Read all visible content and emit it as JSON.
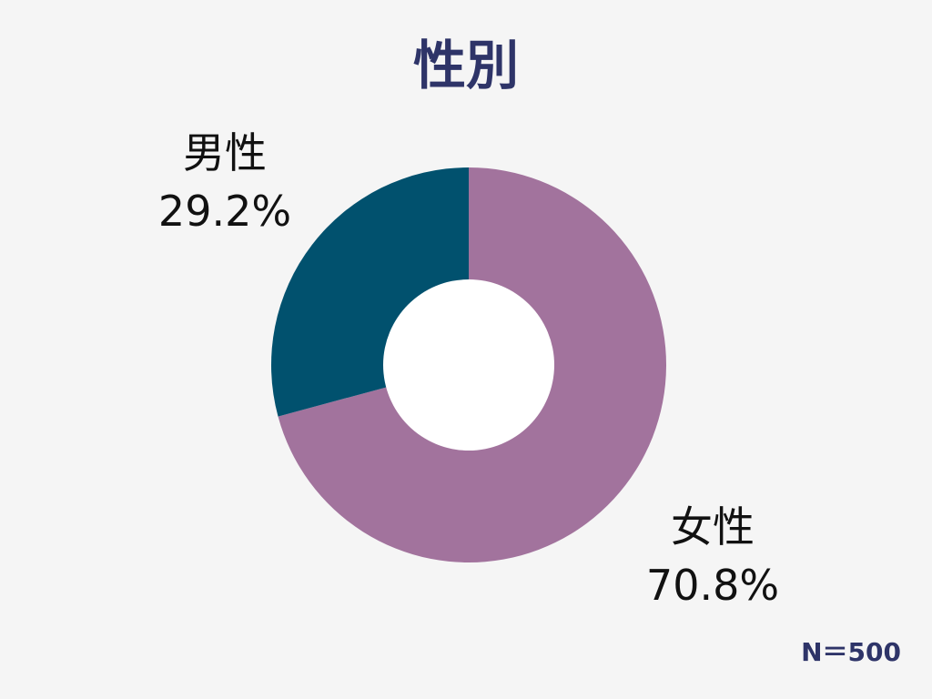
{
  "chart_data": {
    "type": "pie",
    "title": "性別",
    "categories": [
      "女性",
      "男性"
    ],
    "values": [
      70.8,
      29.2
    ],
    "value_labels": [
      "70.8%",
      "29.2%"
    ],
    "colors": [
      "#a2739d",
      "#01516e"
    ],
    "donut": true,
    "start": "12 o'clock, clockwise",
    "note": "N＝500"
  },
  "colors": {
    "background": "#f5f5f5",
    "title": "#2e3468",
    "hole": "#ffffff"
  }
}
